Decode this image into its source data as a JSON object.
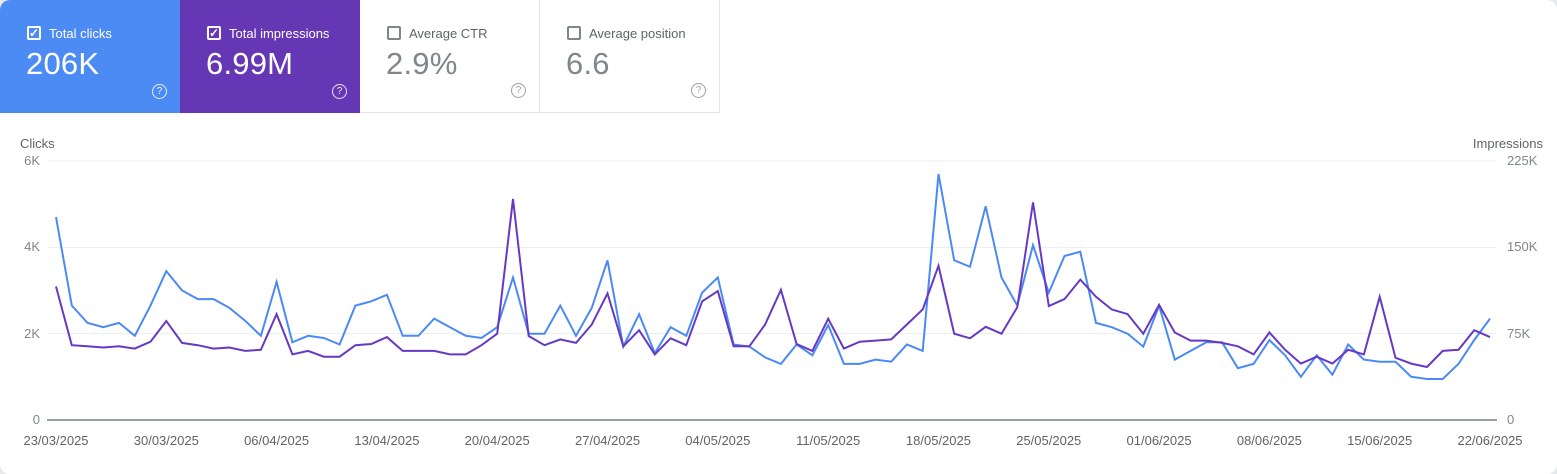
{
  "cards": [
    {
      "label": "Total clicks",
      "value": "206K",
      "checked": true,
      "bg": "#4c8bf4"
    },
    {
      "label": "Total impressions",
      "value": "6.99M",
      "checked": true,
      "bg": "#6637b5"
    },
    {
      "label": "Average CTR",
      "value": "2.9%",
      "checked": false,
      "bg": ""
    },
    {
      "label": "Average position",
      "value": "6.6",
      "checked": false,
      "bg": ""
    }
  ],
  "help_glyph": "?",
  "check_glyph": "✓",
  "chart_data": {
    "type": "line",
    "grid": "horizontal",
    "left_axis": {
      "title": "Clicks",
      "max": 6000,
      "ticks": [
        "0",
        "2K",
        "4K",
        "6K"
      ]
    },
    "right_axis": {
      "title": "Impressions",
      "max": 225000,
      "ticks": [
        "0",
        "75K",
        "150K",
        "225K"
      ]
    },
    "x_tick_labels": [
      "23/03/2025",
      "30/03/2025",
      "06/04/2025",
      "13/04/2025",
      "20/04/2025",
      "27/04/2025",
      "04/05/2025",
      "11/05/2025",
      "18/05/2025",
      "25/05/2025",
      "01/06/2025",
      "08/06/2025",
      "15/06/2025",
      "22/06/2025"
    ],
    "x_start_date": "23/03/2025",
    "x_end_date": "22/06/2025",
    "points_per_label": 7,
    "series": [
      {
        "name": "Total clicks",
        "axis": "left",
        "color": "#4b8af6",
        "values": [
          4700,
          2650,
          2250,
          2150,
          2250,
          1950,
          2650,
          3450,
          3000,
          2800,
          2800,
          2600,
          2300,
          1950,
          3200,
          1800,
          1950,
          1900,
          1750,
          2650,
          2750,
          2900,
          1950,
          1950,
          2350,
          2150,
          1950,
          1900,
          2150,
          3300,
          2000,
          2000,
          2650,
          1950,
          2600,
          3700,
          1700,
          2450,
          1550,
          2150,
          1950,
          2950,
          3300,
          1750,
          1700,
          1450,
          1300,
          1750,
          1500,
          2200,
          1300,
          1300,
          1400,
          1350,
          1750,
          1600,
          5700,
          3700,
          3550,
          4950,
          3300,
          2650,
          4050,
          2950,
          3800,
          3900,
          2250,
          2150,
          2000,
          1700,
          2650,
          1400,
          1600,
          1800,
          1800,
          1200,
          1300,
          1850,
          1500,
          1000,
          1500,
          1050,
          1750,
          1400,
          1350,
          1350,
          1000,
          950,
          950,
          1300,
          1850,
          2350
        ]
      },
      {
        "name": "Total impressions",
        "axis": "right",
        "color": "#6639c4",
        "values": [
          116000,
          65000,
          64000,
          63000,
          64000,
          62000,
          68000,
          86000,
          67000,
          65000,
          62000,
          63000,
          60000,
          61000,
          92000,
          57000,
          60000,
          55000,
          55000,
          65000,
          66000,
          72000,
          60000,
          60000,
          60000,
          57000,
          57000,
          65000,
          75000,
          192000,
          73000,
          65000,
          70000,
          67000,
          83000,
          110000,
          64000,
          78000,
          57000,
          71000,
          65000,
          103000,
          112000,
          64000,
          64000,
          83000,
          113000,
          66000,
          60000,
          88000,
          62000,
          68000,
          69000,
          70000,
          83000,
          96000,
          134000,
          75000,
          71000,
          81000,
          75000,
          98000,
          189000,
          99000,
          105000,
          122000,
          107000,
          96000,
          92000,
          75000,
          100000,
          76000,
          69000,
          69000,
          67000,
          64000,
          57000,
          76000,
          61000,
          49000,
          55000,
          49000,
          61000,
          57000,
          107000,
          54000,
          49000,
          46000,
          60000,
          61000,
          78000,
          72000
        ]
      }
    ]
  }
}
